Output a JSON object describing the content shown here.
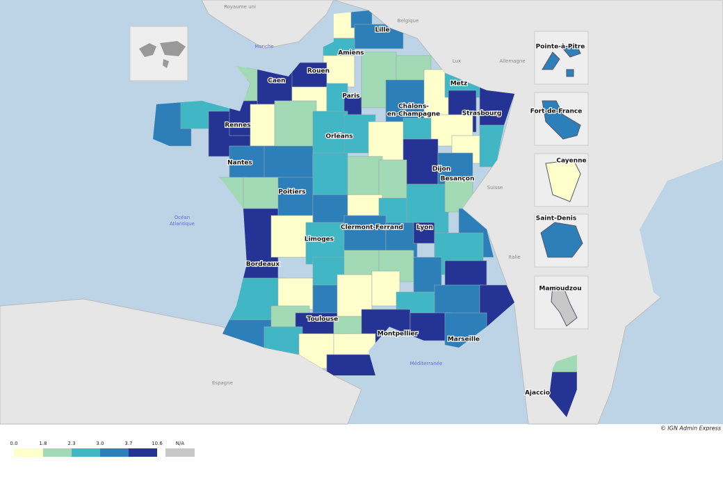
{
  "map": {
    "countries": [
      "Royaume uni",
      "Belgique",
      "Lux",
      "Allemagne",
      "Suisse",
      "Italie",
      "Espagne"
    ],
    "seas": [
      [
        "Manche"
      ],
      [
        "Océan",
        "Atlantique"
      ],
      [
        "Méditerranée"
      ]
    ],
    "cities": [
      [
        "Lille"
      ],
      [
        "Amiens"
      ],
      [
        "Rouen"
      ],
      [
        "Caen"
      ],
      [
        "Paris"
      ],
      [
        "Metz"
      ],
      [
        "Strasbourg"
      ],
      [
        "Châlons-",
        "en-Champagne"
      ],
      [
        "Rennes"
      ],
      [
        "Orléans"
      ],
      [
        "Nantes"
      ],
      [
        "Dijon"
      ],
      [
        "Besançon"
      ],
      [
        "Poitiers"
      ],
      [
        "Clermont-Ferrand"
      ],
      [
        "Lyon"
      ],
      [
        "Limoges"
      ],
      [
        "Bordeaux"
      ],
      [
        "Toulouse"
      ],
      [
        "Montpellier"
      ],
      [
        "Marseille"
      ],
      [
        "Ajaccio"
      ]
    ],
    "insets": [
      "Pointe-à-Pitre",
      "Fort-de-France",
      "Cayenne",
      "Saint-Denis",
      "Mamoudzou"
    ],
    "legend": {
      "ticks": [
        "0.0",
        "1.8",
        "2.3",
        "3.0",
        "3.7",
        "10.6"
      ],
      "colors": [
        "#ffffcc",
        "#a1dab4",
        "#41b6c4",
        "#2c7fb8",
        "#253494"
      ],
      "na_label": "N/A",
      "na_color": "#c8c8c8"
    },
    "credit": "© IGN Admin Express"
  }
}
